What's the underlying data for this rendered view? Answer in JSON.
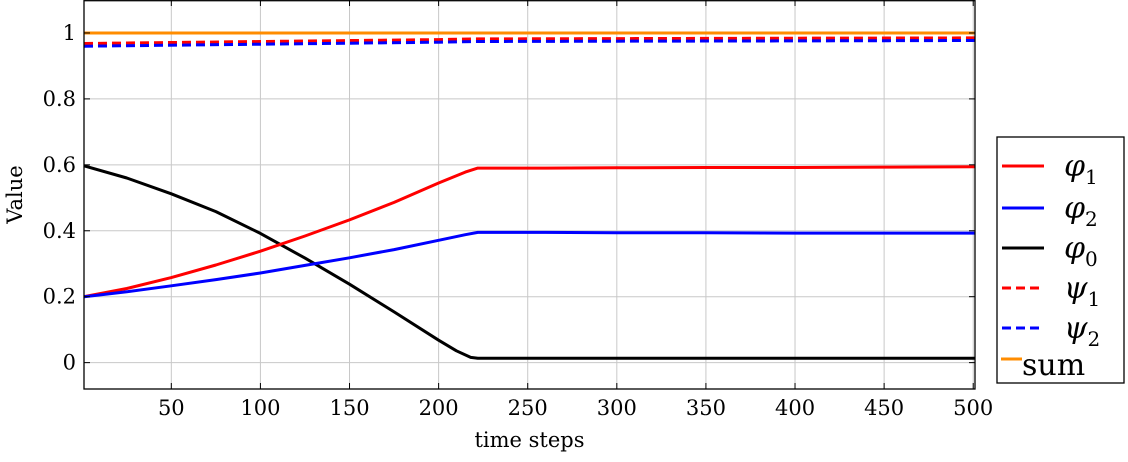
{
  "chart_data": {
    "type": "line",
    "xlabel": "time steps",
    "ylabel": "Value",
    "xlim": [
      1,
      501
    ],
    "ylim": [
      -0.08,
      1.1
    ],
    "xticks": [
      50,
      100,
      150,
      200,
      250,
      300,
      350,
      400,
      450,
      500
    ],
    "yticks": [
      0,
      0.2,
      0.4,
      0.6,
      0.8,
      1
    ],
    "grid": true,
    "legend_position": "outside-right-bottom",
    "series": [
      {
        "name": "φ1",
        "label_main": "φ",
        "label_sub": "1",
        "color": "#ff0000",
        "dash": "solid",
        "x": [
          1,
          25,
          50,
          75,
          100,
          125,
          150,
          175,
          200,
          215,
          222,
          260,
          300,
          350,
          400,
          450,
          501
        ],
        "y": [
          0.2,
          0.225,
          0.258,
          0.296,
          0.338,
          0.384,
          0.433,
          0.486,
          0.545,
          0.578,
          0.59,
          0.59,
          0.591,
          0.592,
          0.592,
          0.593,
          0.594
        ]
      },
      {
        "name": "φ2",
        "label_main": "φ",
        "label_sub": "2",
        "color": "#0000ff",
        "dash": "solid",
        "x": [
          1,
          25,
          50,
          75,
          100,
          125,
          150,
          175,
          200,
          215,
          222,
          260,
          300,
          350,
          400,
          450,
          501
        ],
        "y": [
          0.2,
          0.215,
          0.233,
          0.252,
          0.272,
          0.295,
          0.318,
          0.343,
          0.371,
          0.388,
          0.395,
          0.395,
          0.394,
          0.394,
          0.393,
          0.393,
          0.393
        ]
      },
      {
        "name": "φ0",
        "label_main": "φ",
        "label_sub": "0",
        "color": "#000000",
        "dash": "solid",
        "x": [
          1,
          25,
          50,
          75,
          100,
          125,
          150,
          175,
          200,
          210,
          218,
          222,
          260,
          300,
          350,
          400,
          450,
          501
        ],
        "y": [
          0.597,
          0.56,
          0.512,
          0.458,
          0.392,
          0.317,
          0.238,
          0.154,
          0.068,
          0.036,
          0.016,
          0.013,
          0.013,
          0.013,
          0.013,
          0.013,
          0.013,
          0.013
        ]
      },
      {
        "name": "ψ1",
        "label_main": "ψ",
        "label_sub": "1",
        "color": "#ff0000",
        "dash": "dashed",
        "x": [
          1,
          100,
          200,
          222,
          300,
          400,
          501
        ],
        "y": [
          0.968,
          0.974,
          0.98,
          0.982,
          0.983,
          0.984,
          0.985
        ]
      },
      {
        "name": "ψ2",
        "label_main": "ψ",
        "label_sub": "2",
        "color": "#0000ff",
        "dash": "dashed",
        "x": [
          1,
          100,
          200,
          222,
          300,
          400,
          501
        ],
        "y": [
          0.96,
          0.966,
          0.972,
          0.974,
          0.975,
          0.976,
          0.977
        ]
      },
      {
        "name": "sum",
        "label_main": "sum",
        "label_sub": "",
        "color": "#ff8c00",
        "dash": "solid",
        "x": [
          1,
          501
        ],
        "y": [
          1.0,
          1.0
        ]
      }
    ]
  }
}
